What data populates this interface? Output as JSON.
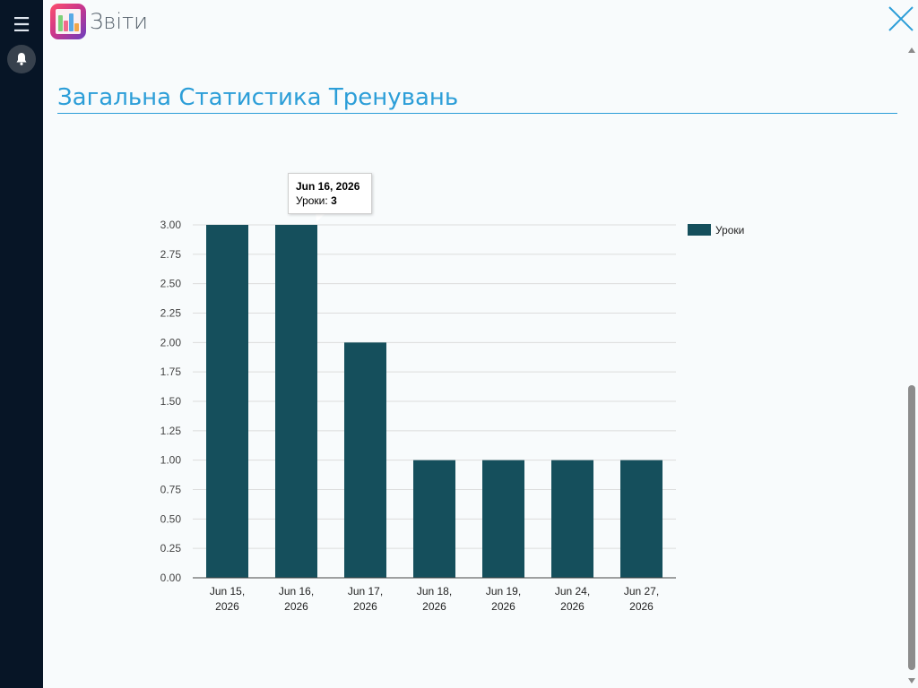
{
  "app": {
    "title": "Звіти"
  },
  "page": {
    "title": "Загальна Статистика Тренувань"
  },
  "sidebar": {
    "menu_icon": "hamburger-icon",
    "notify_icon": "bell-icon"
  },
  "colors": {
    "bar": "#154f5c",
    "accent": "#2c9ed8",
    "sidebar": "#071526"
  },
  "tooltip": {
    "date": "Jun 16, 2026",
    "label": "Уроки",
    "value": "3"
  },
  "chart_data": {
    "type": "bar",
    "categories": [
      [
        "Jun 15,",
        "2026"
      ],
      [
        "Jun 16,",
        "2026"
      ],
      [
        "Jun 17,",
        "2026"
      ],
      [
        "Jun 18,",
        "2026"
      ],
      [
        "Jun 19,",
        "2026"
      ],
      [
        "Jun 24,",
        "2026"
      ],
      [
        "Jun 27,",
        "2026"
      ]
    ],
    "series": [
      {
        "name": "Уроки",
        "values": [
          3,
          3,
          2,
          1,
          1,
          1,
          1
        ]
      }
    ],
    "ylim": [
      0,
      3
    ],
    "yticks": [
      "0.00",
      "0.25",
      "0.50",
      "0.75",
      "1.00",
      "1.25",
      "1.50",
      "1.75",
      "2.00",
      "2.25",
      "2.50",
      "2.75",
      "3.00"
    ],
    "legend_position": "right-top",
    "grid": true
  }
}
